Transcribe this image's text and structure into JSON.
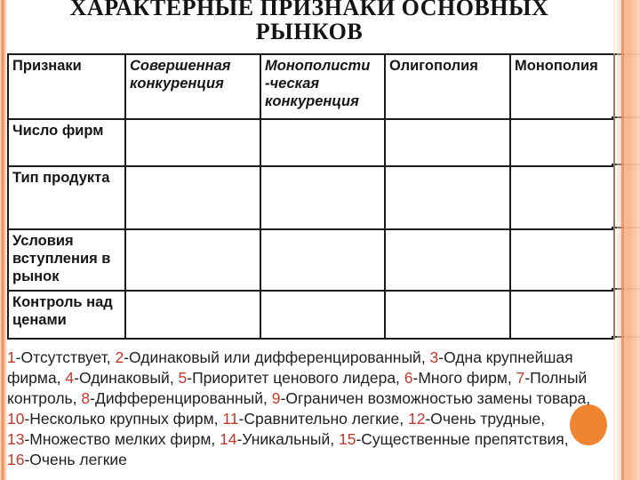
{
  "title": {
    "line1": "ХАРАКТЕРНЫЕ ПРИЗНАКИ ОСНОВНЫХ",
    "line2": "РЫНКОВ"
  },
  "table": {
    "header": [
      "Признаки",
      "Совершенная конкуренция",
      "Монополисти -ческая конкуренция",
      "Олигополия",
      "Монополия"
    ],
    "row_labels": [
      "Число фирм",
      "Тип продукта",
      "Условия вступления в рынок",
      "Контроль над ценами"
    ],
    "empty_cell": ""
  },
  "legend": {
    "lines": [
      [
        {
          "n": "1"
        },
        {
          "t": "-Отсутствует, "
        },
        {
          "n": "2"
        },
        {
          "t": "-Одинаковый или дифференцированный, "
        },
        {
          "n": "3"
        },
        {
          "t": "-Одна крупнейшая"
        }
      ],
      [
        {
          "t": "фирма, "
        },
        {
          "n": "4"
        },
        {
          "t": "-Одинаковый, "
        },
        {
          "n": "5"
        },
        {
          "t": "-Приоритет ценового лидера, "
        },
        {
          "n": "6"
        },
        {
          "t": "-Много фирм, "
        },
        {
          "n": "7"
        },
        {
          "t": "-Полный"
        }
      ],
      [
        {
          "t": "контроль, "
        },
        {
          "n": "8"
        },
        {
          "t": "-Дифференцированный, "
        },
        {
          "n": "9"
        },
        {
          "t": "-Ограничен возможностью замены товара,"
        }
      ],
      [
        {
          "n": "10"
        },
        {
          "t": "-Несколько крупных фирм, "
        },
        {
          "n": "11"
        },
        {
          "t": "-Сравнительно легкие, "
        },
        {
          "n": "12"
        },
        {
          "t": "-Очень трудные,"
        }
      ],
      [
        {
          "n": "13"
        },
        {
          "t": "-Множество мелких фирм, "
        },
        {
          "n": "14"
        },
        {
          "t": "-Уникальный, "
        },
        {
          "n": "15"
        },
        {
          "t": "-Существенные препятствия,"
        }
      ],
      [
        {
          "n": "16"
        },
        {
          "t": "-Очень легкие"
        }
      ]
    ]
  },
  "colors": {
    "legend_number_red": "#c1392b",
    "ink": "#1c1c1c",
    "band_salmon": "#f7b78f",
    "band_salmon_dark": "#ee9160",
    "circle_orange": "#ef8431"
  }
}
